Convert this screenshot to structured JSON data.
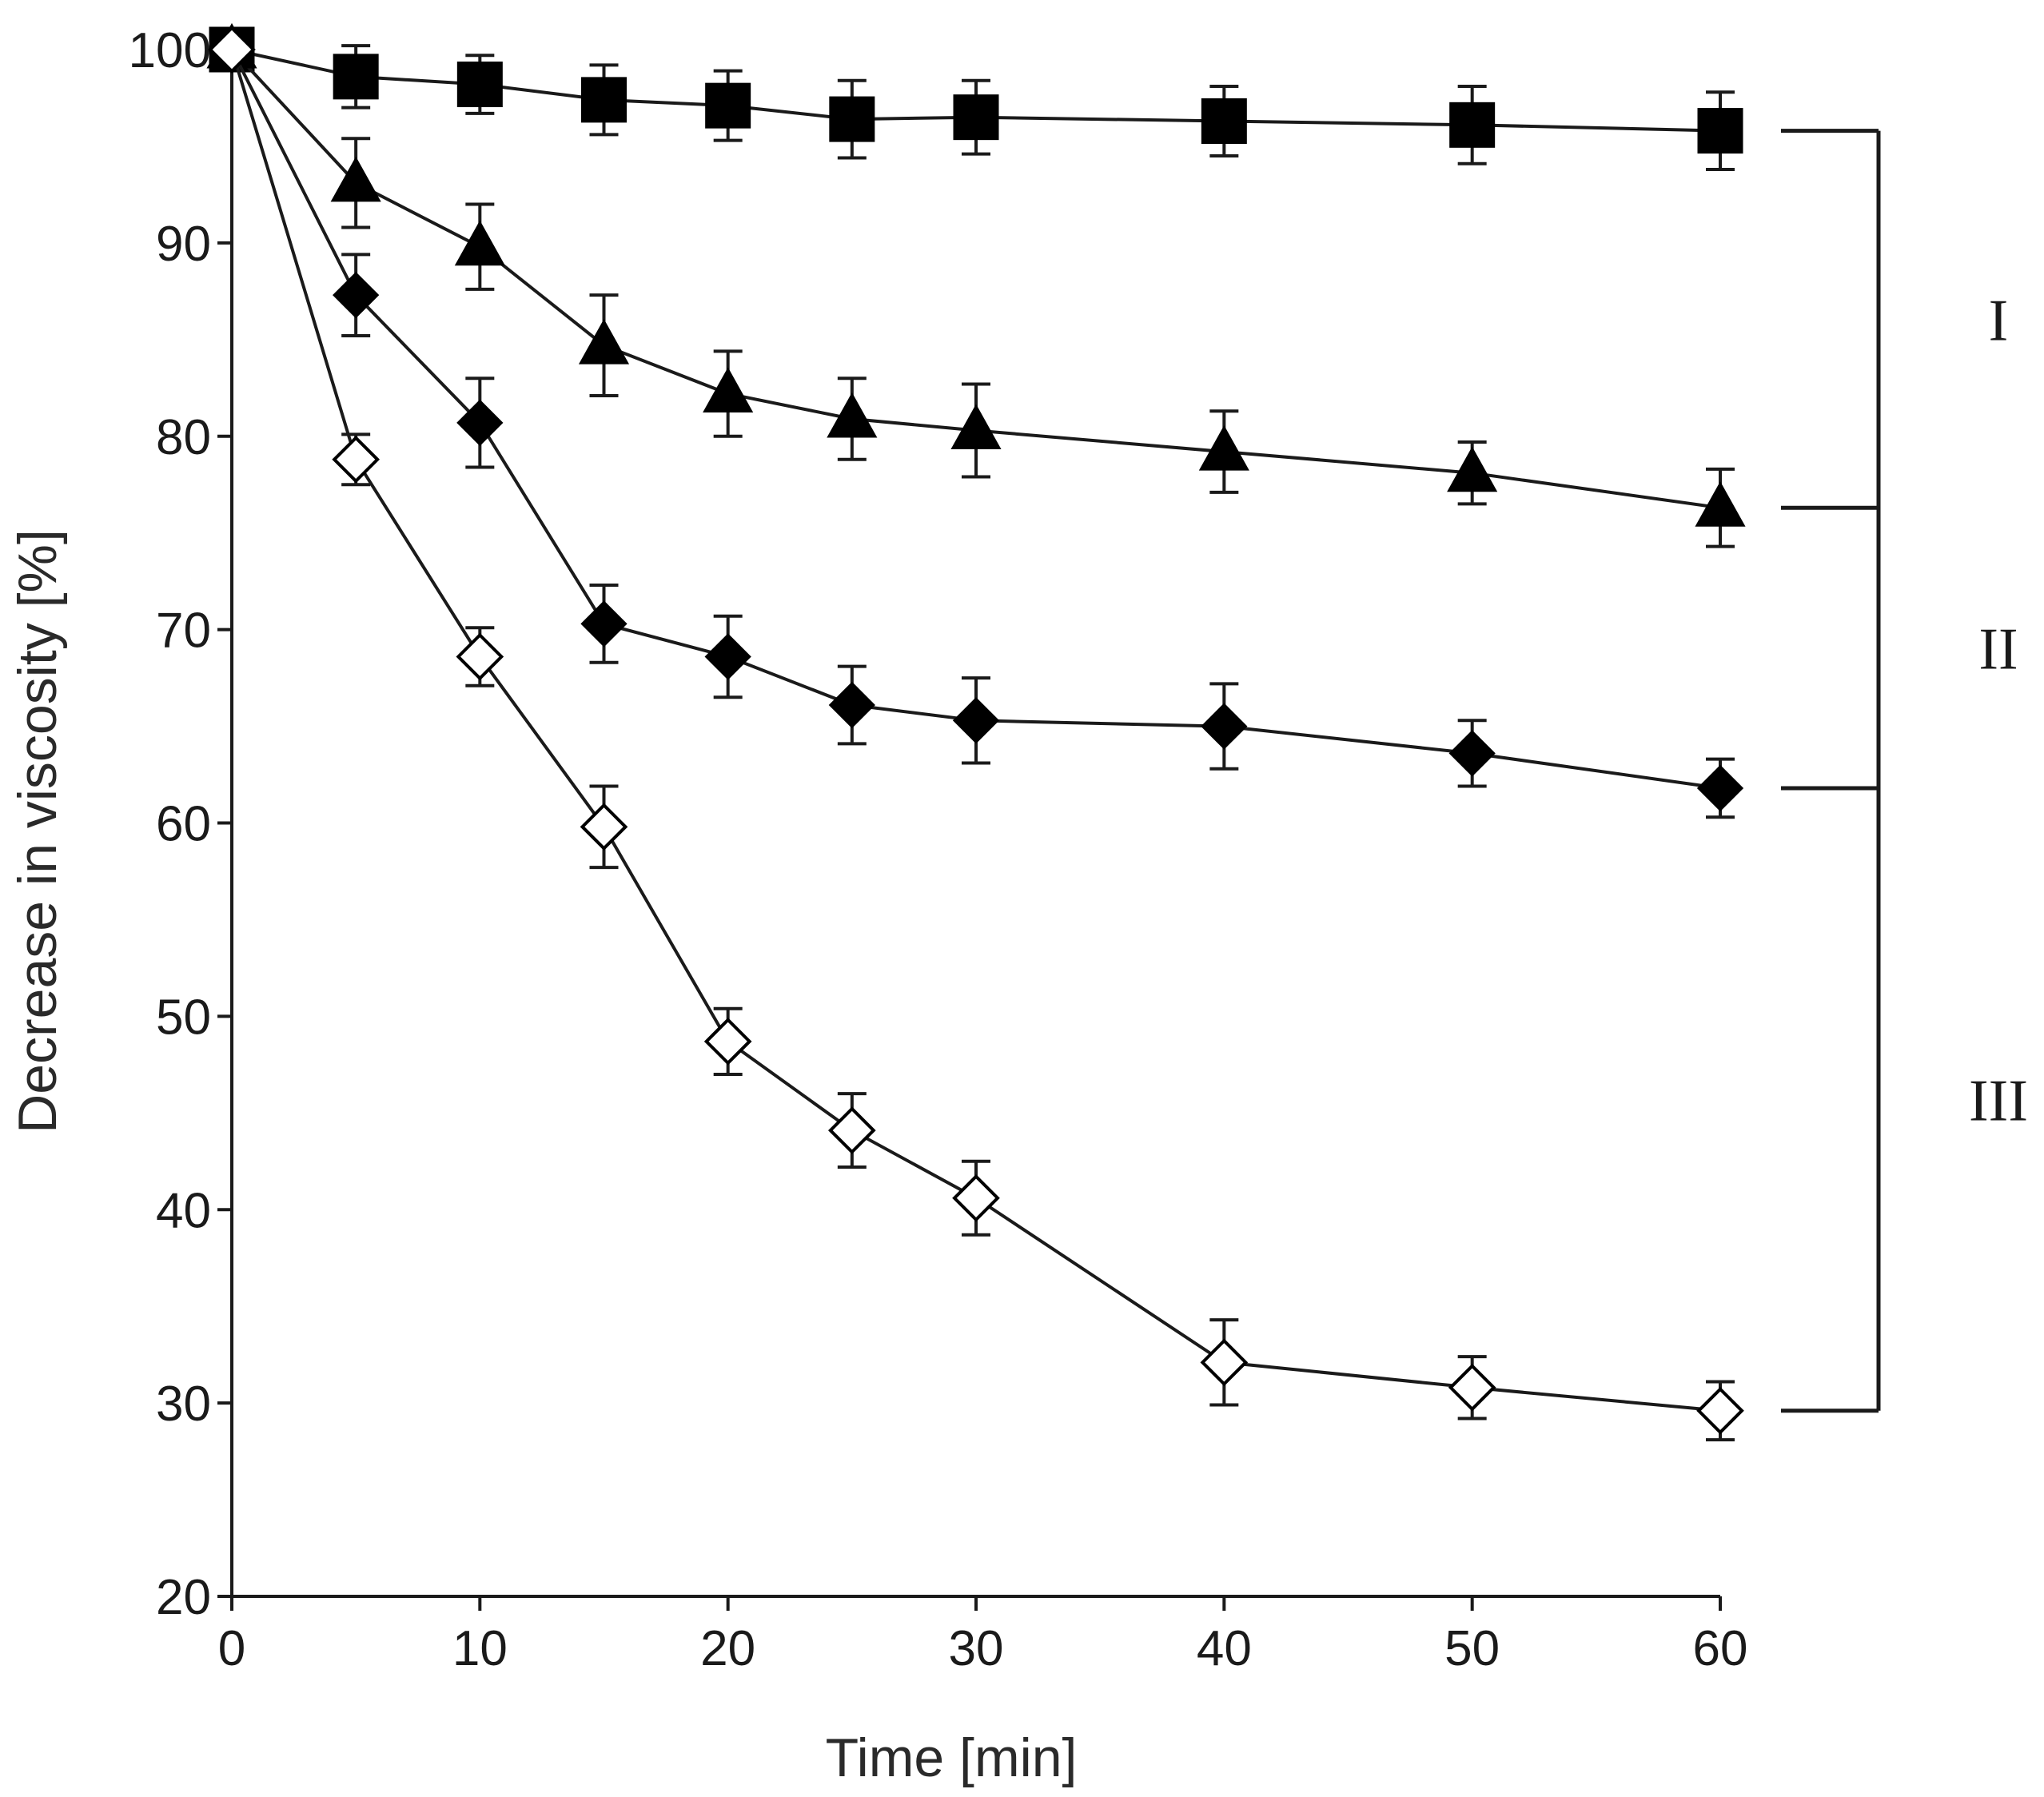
{
  "chart_data": {
    "type": "line",
    "title": "",
    "xlabel": "Time [min]",
    "ylabel": "Decrease in viscosity [%]",
    "xlim": [
      0,
      60
    ],
    "ylim": [
      20,
      100
    ],
    "x_ticks": [
      0,
      10,
      20,
      30,
      40,
      50,
      60
    ],
    "x_tick_labels": [
      "0",
      "10",
      "20",
      "30",
      "40",
      "50",
      "60"
    ],
    "y_ticks": [
      20,
      30,
      40,
      50,
      60,
      70,
      80,
      90,
      100
    ],
    "y_tick_labels": [
      "20",
      "30",
      "40",
      "50",
      "60",
      "70",
      "80",
      "90",
      "100"
    ],
    "grid": false,
    "x": [
      0,
      5,
      10,
      15,
      20,
      25,
      30,
      40,
      50,
      60
    ],
    "series": [
      {
        "name": "filled-square",
        "marker": "square",
        "filled": true,
        "values": [
          100,
          98.6,
          98.2,
          97.4,
          97.1,
          96.4,
          96.5,
          96.3,
          96.1,
          95.8
        ],
        "errors": [
          0,
          1.6,
          1.5,
          1.8,
          1.8,
          2.0,
          1.9,
          1.8,
          2.0,
          2.0
        ]
      },
      {
        "name": "filled-triangle",
        "marker": "triangle",
        "filled": true,
        "values": [
          100,
          93.1,
          89.8,
          84.7,
          82.2,
          80.9,
          80.3,
          79.2,
          78.1,
          76.3
        ],
        "errors": [
          0,
          2.3,
          2.2,
          2.6,
          2.2,
          2.1,
          2.4,
          2.1,
          1.6,
          2.0
        ]
      },
      {
        "name": "filled-diamond",
        "marker": "diamond",
        "filled": true,
        "values": [
          100,
          87.3,
          80.7,
          70.3,
          68.6,
          66.1,
          65.3,
          65.0,
          63.6,
          61.8
        ],
        "errors": [
          0,
          2.1,
          2.3,
          2.0,
          2.1,
          2.0,
          2.2,
          2.2,
          1.7,
          1.5
        ]
      },
      {
        "name": "open-diamond",
        "marker": "diamond",
        "filled": false,
        "values": [
          100,
          78.8,
          68.6,
          59.8,
          48.7,
          44.1,
          40.6,
          32.1,
          30.8,
          29.6
        ],
        "errors": [
          0,
          1.3,
          1.5,
          2.1,
          1.7,
          1.9,
          1.9,
          2.2,
          1.6,
          1.5
        ]
      }
    ],
    "annotations": {
      "groups": [
        {
          "label": "I",
          "from": 95.8,
          "to": 76.3
        },
        {
          "label": "II",
          "from": 76.3,
          "to": 61.8
        },
        {
          "label": "III",
          "from": 61.8,
          "to": 29.6
        }
      ]
    }
  }
}
